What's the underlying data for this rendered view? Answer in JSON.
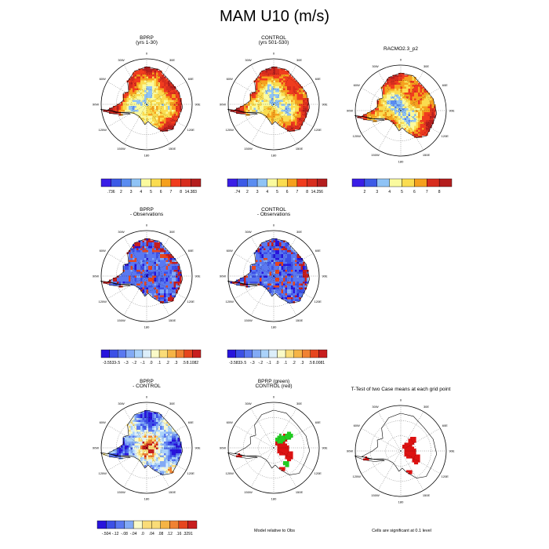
{
  "page": {
    "title": "MAM U10 (m/s)"
  },
  "longitude_labels": [
    "0",
    "30E",
    "60E",
    "90E",
    "120E",
    "150E",
    "180",
    "150W",
    "120W",
    "90W",
    "60W",
    "30W"
  ],
  "palettes": {
    "abs": [
      "#3a1ee6",
      "#3c5ae6",
      "#5a8cf0",
      "#8fc3f5",
      "#fafa9e",
      "#fadc50",
      "#f5a01e",
      "#f03c1e",
      "#d72d1e",
      "#b41e1e"
    ],
    "diff": [
      "#2814dc",
      "#3c50e6",
      "#5a78f0",
      "#82aaf5",
      "#aad2fa",
      "#dceefa",
      "#fafac8",
      "#fadc78",
      "#f5b446",
      "#f08232",
      "#e6461e",
      "#c81e1e"
    ],
    "model": "#22cc22",
    "control": "#dd1111",
    "land": "#ffffff"
  },
  "panels": [
    {
      "id": "bprp-abs",
      "title": "BPRP\n(yrs 1-30)",
      "kind": "abs",
      "colorbar": {
        "labels": [
          ".736",
          "2",
          "3",
          "4",
          "5",
          "6",
          "7",
          "8",
          "14.383"
        ]
      }
    },
    {
      "id": "control-abs",
      "title": "CONTROL\n(yrs 501-530)",
      "kind": "abs",
      "colorbar": {
        "labels": [
          ".74",
          "2",
          "3",
          "4",
          "5",
          "6",
          "7",
          "8",
          "14.256"
        ]
      }
    },
    {
      "id": "racmo-abs",
      "title": "RACMO2.3_p2",
      "kind": "abs",
      "colorbar": {
        "labels": [
          "2",
          "3",
          "4",
          "5",
          "6",
          "7",
          "8"
        ]
      }
    },
    {
      "id": "bprp-obs",
      "title": "BPRP\n- Observations",
      "kind": "diff",
      "colorbar": {
        "labels": [
          "-3.5533",
          "-.5",
          "-.3",
          "-.2",
          "-.1",
          ".0",
          ".1",
          ".2",
          ".3",
          ".5",
          "8.1082"
        ]
      }
    },
    {
      "id": "control-obs",
      "title": "CONTROL\n- Observations",
      "kind": "diff",
      "colorbar": {
        "labels": [
          "-3.5833",
          "-.5",
          "-.3",
          "-.2",
          "-.1",
          ".0",
          ".1",
          ".2",
          ".3",
          ".5",
          "8.0081"
        ]
      }
    },
    {
      "id": "bprp-control",
      "title": "BPRP\n- CONTROL",
      "kind": "diff2",
      "colorbar": {
        "labels": [
          "-.504",
          "-.12",
          "-.08",
          "-.04",
          ".0",
          ".04",
          ".08",
          ".12",
          ".16",
          ".3291"
        ]
      }
    },
    {
      "id": "relative",
      "title": "BPRP (green)\nCONTROL (red)",
      "kind": "relative",
      "caption": "Model relative to Obs"
    },
    {
      "id": "ttest",
      "title": "T-Test of two Case means at each grid point",
      "kind": "ttest",
      "caption": "Cells are significant at 0.1 level"
    }
  ],
  "chart_data": {
    "type": "heatmap",
    "title": "MAM U10 (m/s)",
    "units": "m/s",
    "projection": "south polar stereographic (Antarctica)",
    "subplots": [
      {
        "title": "BPRP (yrs 1-30)",
        "range": [
          0.736,
          14.383
        ],
        "levels": [
          2,
          3,
          4,
          5,
          6,
          7,
          8
        ]
      },
      {
        "title": "CONTROL (yrs 501-530)",
        "range": [
          0.74,
          14.256
        ],
        "levels": [
          2,
          3,
          4,
          5,
          6,
          7,
          8
        ]
      },
      {
        "title": "RACMO2.3_p2",
        "levels": [
          2,
          3,
          4,
          5,
          6,
          7,
          8
        ]
      },
      {
        "title": "BPRP - Observations",
        "range": [
          -3.5533,
          8.1082
        ],
        "levels": [
          -0.5,
          -0.3,
          -0.2,
          -0.1,
          0,
          0.1,
          0.2,
          0.3,
          0.5
        ]
      },
      {
        "title": "CONTROL - Observations",
        "range": [
          -3.5833,
          8.0081
        ],
        "levels": [
          -0.5,
          -0.3,
          -0.2,
          -0.1,
          0,
          0.1,
          0.2,
          0.3,
          0.5
        ]
      },
      {
        "title": "BPRP - CONTROL",
        "range": [
          -0.504,
          0.3291
        ],
        "levels": [
          -0.12,
          -0.08,
          -0.04,
          0,
          0.04,
          0.08,
          0.12,
          0.16
        ]
      },
      {
        "title": "BPRP (green) CONTROL (red)",
        "note": "Model relative to Obs"
      },
      {
        "title": "T-Test of two Case means at each grid point",
        "note": "Cells are significant at 0.1 level"
      }
    ]
  }
}
